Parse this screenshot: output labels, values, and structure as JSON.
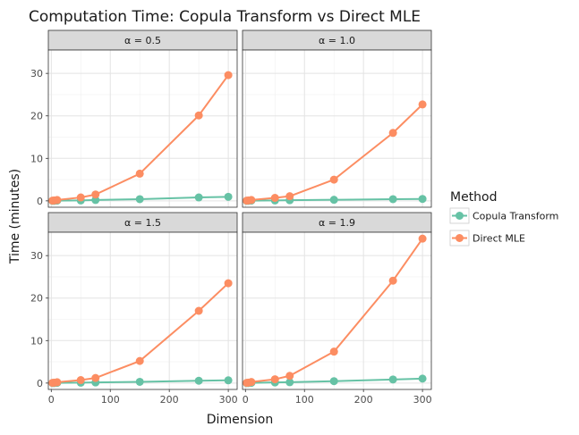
{
  "chart_data": {
    "type": "line",
    "title": "Computation Time: Copula Transform vs Direct MLE",
    "xlabel": "Dimension",
    "ylabel": "Time (minutes)",
    "xlim": [
      -5,
      315
    ],
    "ylim": [
      -1.5,
      35.5
    ],
    "x_ticks": [
      0,
      100,
      200,
      300
    ],
    "y_ticks": [
      0,
      10,
      20,
      30
    ],
    "grid": true,
    "legend": {
      "title": "Method",
      "placement": "right",
      "entries": [
        "Copula Transform",
        "Direct MLE"
      ]
    },
    "x": [
      2,
      5,
      10,
      50,
      75,
      150,
      250,
      300
    ],
    "panels": [
      {
        "label": "α = 0.5",
        "series": [
          {
            "name": "Copula Transform",
            "color": "#66c2a5",
            "values": [
              0.0,
              0.0,
              0.05,
              0.1,
              0.2,
              0.4,
              0.8,
              0.95
            ]
          },
          {
            "name": "Direct MLE",
            "color": "#fc8d62",
            "values": [
              0.05,
              0.1,
              0.2,
              0.8,
              1.5,
              6.4,
              20.1,
              29.6
            ]
          }
        ]
      },
      {
        "label": "α = 1.0",
        "series": [
          {
            "name": "Copula Transform",
            "color": "#66c2a5",
            "values": [
              0.0,
              0.0,
              0.05,
              0.1,
              0.15,
              0.25,
              0.4,
              0.45
            ]
          },
          {
            "name": "Direct MLE",
            "color": "#fc8d62",
            "values": [
              0.05,
              0.1,
              0.2,
              0.7,
              1.1,
              5.0,
              16.0,
              22.7
            ]
          }
        ]
      },
      {
        "label": "α = 1.5",
        "series": [
          {
            "name": "Copula Transform",
            "color": "#66c2a5",
            "values": [
              0.0,
              0.0,
              0.05,
              0.1,
              0.15,
              0.3,
              0.55,
              0.65
            ]
          },
          {
            "name": "Direct MLE",
            "color": "#fc8d62",
            "values": [
              0.05,
              0.1,
              0.2,
              0.7,
              1.2,
              5.2,
              17.0,
              23.5
            ]
          }
        ]
      },
      {
        "label": "α = 1.9",
        "series": [
          {
            "name": "Copula Transform",
            "color": "#66c2a5",
            "values": [
              0.0,
              0.0,
              0.05,
              0.15,
              0.2,
              0.45,
              0.85,
              1.05
            ]
          },
          {
            "name": "Direct MLE",
            "color": "#fc8d62",
            "values": [
              0.05,
              0.1,
              0.25,
              0.9,
              1.7,
              7.4,
              24.1,
              34.0
            ]
          }
        ]
      }
    ]
  }
}
